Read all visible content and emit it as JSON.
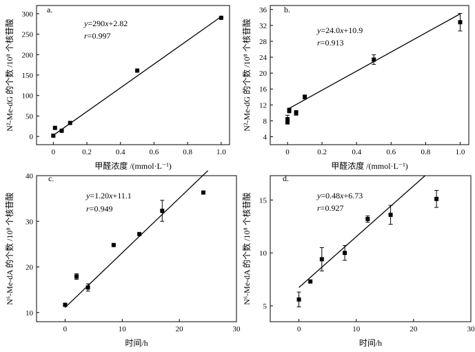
{
  "chart_data": [
    {
      "type": "scatter",
      "panel_label": "a.",
      "xlabel": "甲醛浓度 /(mmol·L⁻¹)",
      "ylabel": "N²-Me-dG 的个数 /10⁸ 个核苷酸",
      "xlim": [
        -0.1,
        1.05
      ],
      "ylim": [
        -20,
        320
      ],
      "xticks": [
        0,
        0.2,
        0.4,
        0.6,
        0.8,
        1.0
      ],
      "xtick_labels": [
        "0",
        "0.2",
        "0.4",
        "0.6",
        "0.8",
        "1.0"
      ],
      "yticks": [
        0,
        50,
        100,
        150,
        200,
        250,
        300
      ],
      "ytick_labels": [
        "0",
        "50",
        "100",
        "150",
        "200",
        "250",
        "300"
      ],
      "points": [
        {
          "x": 0,
          "y": 2
        },
        {
          "x": 0.01,
          "y": 21
        },
        {
          "x": 0.05,
          "y": 14
        },
        {
          "x": 0.1,
          "y": 33
        },
        {
          "x": 0.5,
          "y": 161
        },
        {
          "x": 1.0,
          "y": 290
        }
      ],
      "fit_line": {
        "slope": 290,
        "intercept": 2.82,
        "x_from": 0,
        "x_to": 1.0
      },
      "equation": {
        "italic_y": "y",
        "middle": "=290",
        "italic_x": "x",
        "tail": "+2.82"
      },
      "r_label": {
        "r": "r",
        "value": "=0.997"
      }
    },
    {
      "type": "scatter",
      "panel_label": "b.",
      "xlabel": "甲醛浓度 /(mmol·L⁻¹)",
      "ylabel": "N²-Me-dG 的个数 /10⁸ 个核苷酸",
      "xlim": [
        -0.1,
        1.05
      ],
      "ylim": [
        2,
        37
      ],
      "xticks": [
        0,
        0.2,
        0.4,
        0.6,
        0.8,
        1.0
      ],
      "xtick_labels": [
        "0",
        "0.2",
        "0.4",
        "0.6",
        "0.8",
        "1.0"
      ],
      "yticks": [
        4,
        8,
        12,
        16,
        20,
        24,
        28,
        32,
        36
      ],
      "ytick_labels": [
        "4",
        "8",
        "12",
        "16",
        "20",
        "24",
        "28",
        "32",
        "36"
      ],
      "points": [
        {
          "x": 0,
          "y": 8.4,
          "err": 1.0
        },
        {
          "x": 0,
          "y": 7.6
        },
        {
          "x": 0.01,
          "y": 10.6,
          "err": 0.6
        },
        {
          "x": 0.05,
          "y": 10.0,
          "err": 0.6
        },
        {
          "x": 0.1,
          "y": 14.0,
          "err": 0.5
        },
        {
          "x": 0.5,
          "y": 23.4,
          "err": 1.2
        },
        {
          "x": 1.0,
          "y": 32.8,
          "err": 2.2
        }
      ],
      "fit_line": {
        "slope": 24.0,
        "intercept": 10.9,
        "x_from": 0,
        "x_to": 1.0
      },
      "equation": {
        "italic_y": "y",
        "middle": "=24.0",
        "italic_x": "x",
        "tail": "+10.9"
      },
      "r_label": {
        "r": "r",
        "value": "=0.913"
      }
    },
    {
      "type": "scatter",
      "panel_label": "c.",
      "xlabel": "时间/h",
      "ylabel": "N⁶-Me-dA 的个数 /10⁸ 个核苷酸",
      "xlim": [
        -5,
        30
      ],
      "ylim": [
        8,
        40
      ],
      "xticks": [
        0,
        10,
        20,
        30
      ],
      "xtick_labels": [
        "0",
        "10",
        "20",
        "30"
      ],
      "yticks": [
        10,
        20,
        30,
        40
      ],
      "ytick_labels": [
        "10",
        "20",
        "30",
        "40"
      ],
      "points": [
        {
          "x": 0,
          "y": 11.7
        },
        {
          "x": 2,
          "y": 17.9,
          "err": 0.6
        },
        {
          "x": 4,
          "y": 15.5,
          "err": 0.8
        },
        {
          "x": 8.5,
          "y": 24.8
        },
        {
          "x": 13,
          "y": 27.2
        },
        {
          "x": 17,
          "y": 32.3,
          "err": 2.3
        },
        {
          "x": 24.2,
          "y": 36.3
        }
      ],
      "fit_line": {
        "slope": 1.2,
        "intercept": 11.1,
        "x_from": 0,
        "x_to": 25
      },
      "equation": {
        "italic_y": "y",
        "middle": "=1.20",
        "italic_x": "x",
        "tail": "+11.1"
      },
      "r_label": {
        "r": "r",
        "value": "=0.949"
      }
    },
    {
      "type": "scatter",
      "panel_label": "d.",
      "xlabel": "时间/h",
      "ylabel": "N⁶-Me-dA 的个数 /10⁸ 个核苷酸",
      "xlim": [
        -5,
        30
      ],
      "ylim": [
        3.5,
        17.3
      ],
      "xticks": [
        0,
        10,
        20,
        30
      ],
      "xtick_labels": [
        "0",
        "10",
        "20",
        "30"
      ],
      "yticks": [
        5,
        10,
        15
      ],
      "ytick_labels": [
        "5",
        "10",
        "15"
      ],
      "points": [
        {
          "x": 0,
          "y": 5.6,
          "err": 0.7
        },
        {
          "x": 2,
          "y": 7.3
        },
        {
          "x": 4,
          "y": 9.4,
          "err": 1.1
        },
        {
          "x": 8,
          "y": 10.0,
          "err": 0.7
        },
        {
          "x": 12,
          "y": 13.2,
          "err": 0.3
        },
        {
          "x": 16,
          "y": 13.6,
          "err": 0.9
        },
        {
          "x": 24,
          "y": 15.1,
          "err": 0.8
        }
      ],
      "fit_line": {
        "slope": 0.48,
        "intercept": 6.73,
        "x_from": 0,
        "x_to": 22
      },
      "equation": {
        "italic_y": "y",
        "middle": "=0.48",
        "italic_x": "x",
        "tail": "+6.73"
      },
      "r_label": {
        "r": "r",
        "value": "=0.927"
      }
    }
  ]
}
